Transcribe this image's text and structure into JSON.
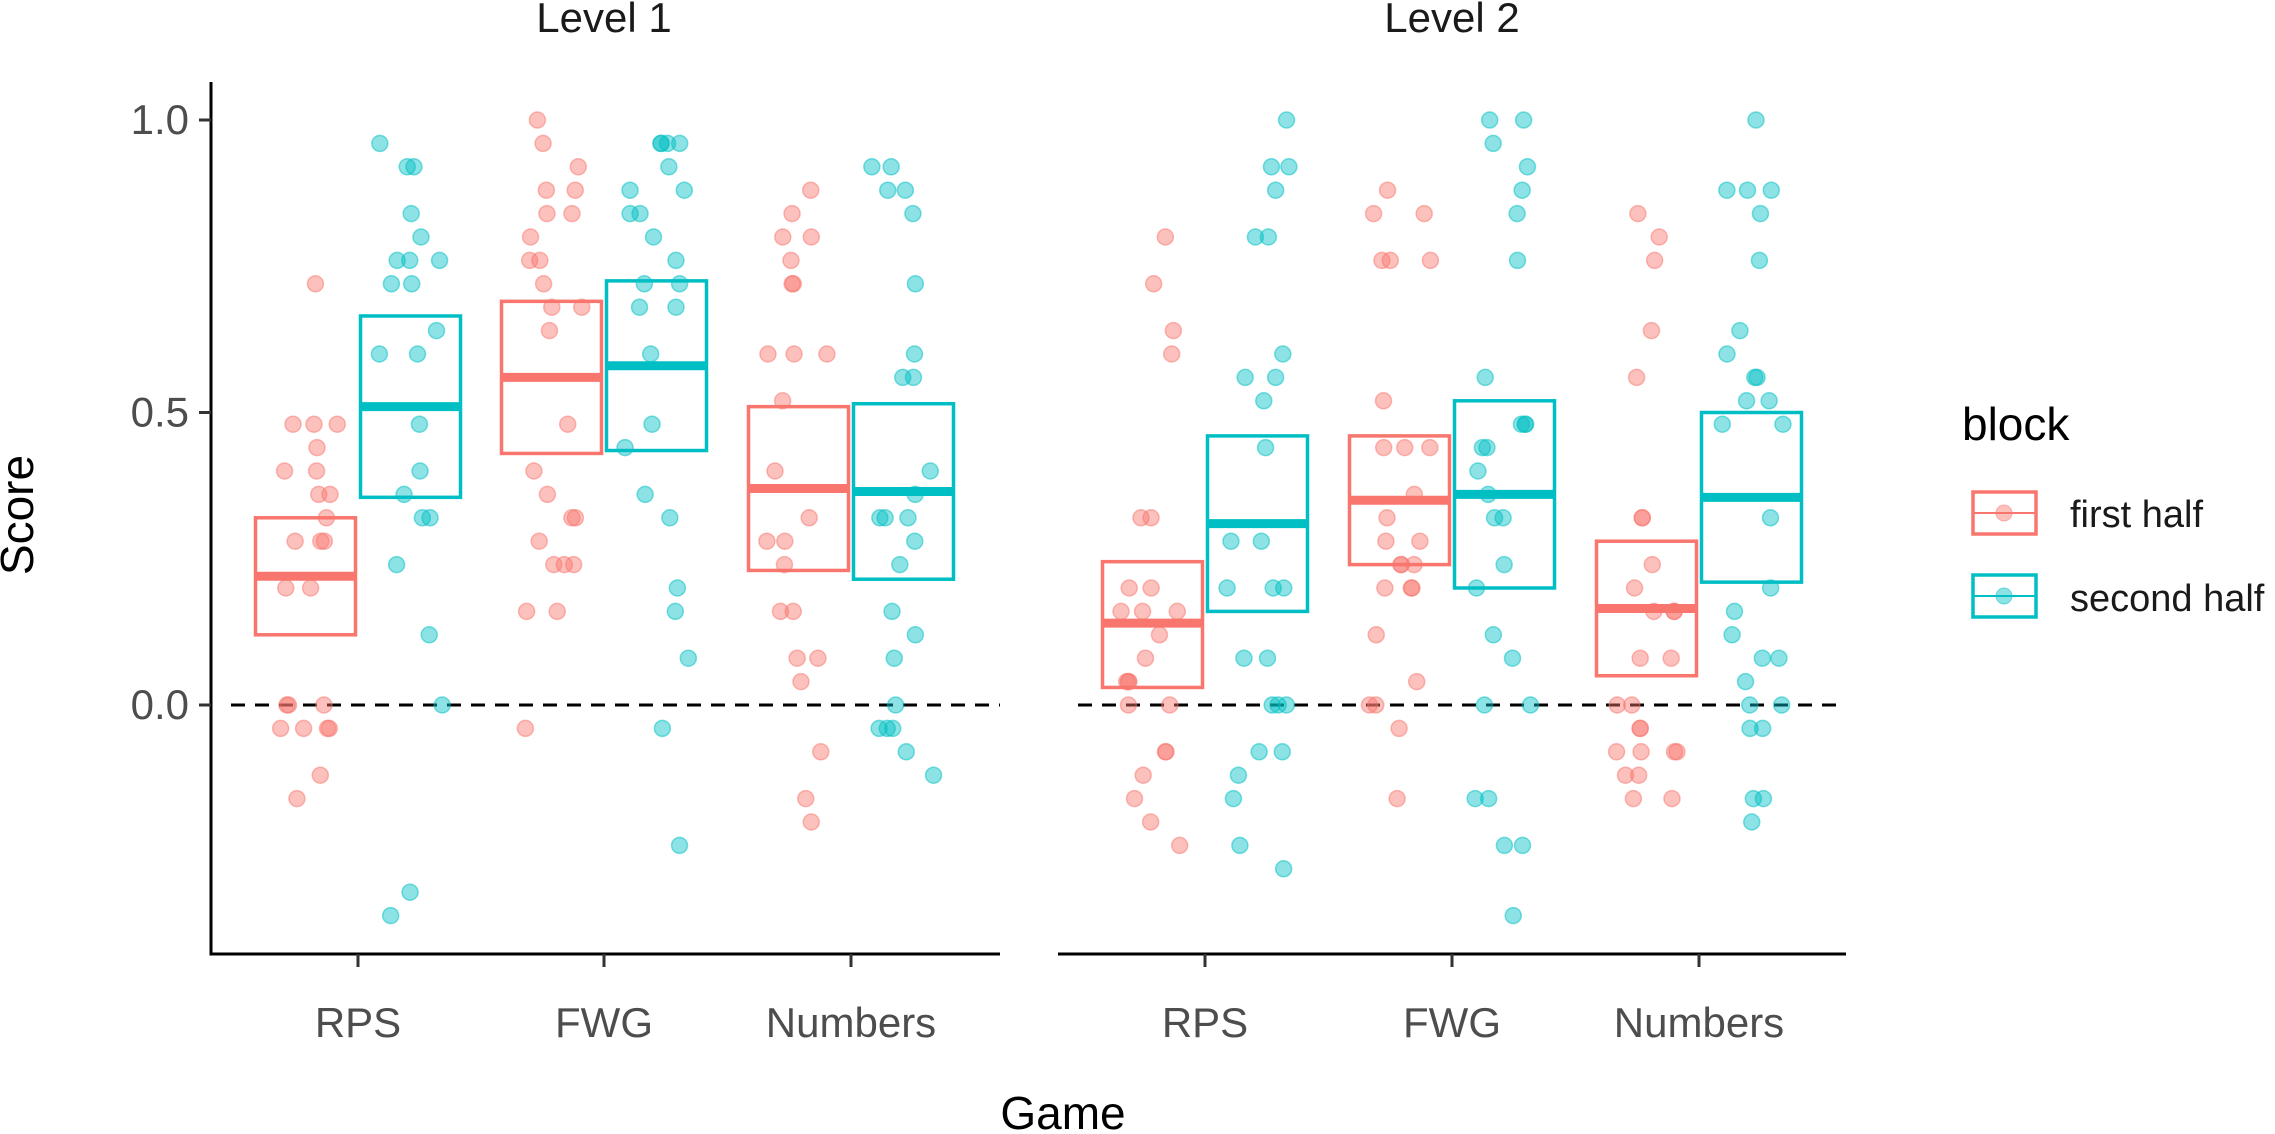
{
  "chart_data": {
    "type": "scatter",
    "subtype": "jittered points with mean boxes",
    "facets": [
      "Level 1",
      "Level 2"
    ],
    "categories": [
      "RPS",
      "FWG",
      "Numbers"
    ],
    "xlabel": "Game",
    "ylabel": "Score",
    "ylim": [
      -0.42,
      1.07
    ],
    "yticks": [
      0.0,
      0.5,
      1.0
    ],
    "ytick_labels": [
      "0.0",
      "0.5",
      "1.0"
    ],
    "reference_line": {
      "y": 0,
      "style": "dashed"
    },
    "grid": false,
    "legend": {
      "title": "block",
      "position": "right",
      "entries": [
        {
          "label": "first half",
          "color": "#F8766D"
        },
        {
          "label": "second half",
          "color": "#00BFC4"
        }
      ]
    },
    "series": [
      {
        "name": "first half",
        "color": "#F8766D",
        "groups": [
          {
            "facet": "Level 1",
            "category": "RPS",
            "mean": 0.22,
            "lower": 0.12,
            "upper": 0.32,
            "points": [
              0.72,
              0.48,
              0.48,
              0.48,
              0.44,
              0.4,
              0.4,
              0.36,
              0.36,
              0.32,
              0.28,
              0.28,
              0.28,
              0.2,
              0.2,
              0.0,
              0.0,
              0.0,
              -0.04,
              -0.04,
              -0.04,
              -0.04,
              -0.12,
              -0.16
            ]
          },
          {
            "facet": "Level 1",
            "category": "FWG",
            "mean": 0.56,
            "lower": 0.43,
            "upper": 0.69,
            "points": [
              1.0,
              0.96,
              0.92,
              0.88,
              0.88,
              0.84,
              0.84,
              0.8,
              0.76,
              0.76,
              0.72,
              0.68,
              0.68,
              0.64,
              0.48,
              0.4,
              0.36,
              0.32,
              0.32,
              0.28,
              0.24,
              0.24,
              0.24,
              0.16,
              0.16,
              -0.04
            ]
          },
          {
            "facet": "Level 1",
            "category": "Numbers",
            "mean": 0.37,
            "lower": 0.23,
            "upper": 0.51,
            "points": [
              0.88,
              0.84,
              0.8,
              0.8,
              0.76,
              0.72,
              0.72,
              0.6,
              0.6,
              0.6,
              0.52,
              0.4,
              0.32,
              0.28,
              0.28,
              0.24,
              0.16,
              0.16,
              0.08,
              0.08,
              0.04,
              -0.08,
              -0.16,
              -0.2
            ]
          },
          {
            "facet": "Level 2",
            "category": "RPS",
            "mean": 0.14,
            "lower": 0.03,
            "upper": 0.245,
            "points": [
              0.8,
              0.72,
              0.64,
              0.6,
              0.32,
              0.32,
              0.2,
              0.2,
              0.16,
              0.16,
              0.16,
              0.12,
              0.08,
              0.04,
              0.04,
              0.04,
              0.0,
              0.0,
              -0.08,
              -0.08,
              -0.12,
              -0.16,
              -0.2,
              -0.24
            ]
          },
          {
            "facet": "Level 2",
            "category": "FWG",
            "mean": 0.35,
            "lower": 0.24,
            "upper": 0.46,
            "points": [
              0.88,
              0.84,
              0.84,
              0.76,
              0.76,
              0.76,
              0.52,
              0.44,
              0.44,
              0.44,
              0.36,
              0.32,
              0.28,
              0.28,
              0.24,
              0.24,
              0.24,
              0.2,
              0.2,
              0.2,
              0.12,
              0.04,
              0.0,
              0.0,
              -0.04,
              -0.16
            ]
          },
          {
            "facet": "Level 2",
            "category": "Numbers",
            "mean": 0.165,
            "lower": 0.05,
            "upper": 0.28,
            "points": [
              0.84,
              0.8,
              0.76,
              0.64,
              0.56,
              0.32,
              0.32,
              0.24,
              0.2,
              0.16,
              0.16,
              0.16,
              0.08,
              0.08,
              0.0,
              0.0,
              -0.04,
              -0.04,
              -0.08,
              -0.08,
              -0.08,
              -0.08,
              -0.12,
              -0.12,
              -0.16,
              -0.16
            ]
          }
        ]
      },
      {
        "name": "second half",
        "color": "#00BFC4",
        "groups": [
          {
            "facet": "Level 1",
            "category": "RPS",
            "mean": 0.51,
            "lower": 0.355,
            "upper": 0.665,
            "points": [
              0.96,
              0.92,
              0.92,
              0.84,
              0.8,
              0.76,
              0.76,
              0.76,
              0.72,
              0.72,
              0.64,
              0.6,
              0.6,
              0.48,
              0.4,
              0.36,
              0.32,
              0.32,
              0.24,
              0.12,
              0.0,
              -0.32,
              -0.36
            ]
          },
          {
            "facet": "Level 1",
            "category": "FWG",
            "mean": 0.58,
            "lower": 0.435,
            "upper": 0.725,
            "points": [
              0.96,
              0.96,
              0.96,
              0.96,
              0.92,
              0.88,
              0.88,
              0.84,
              0.84,
              0.8,
              0.76,
              0.72,
              0.72,
              0.68,
              0.68,
              0.6,
              0.48,
              0.44,
              0.36,
              0.32,
              0.2,
              0.16,
              0.08,
              -0.04,
              -0.24
            ]
          },
          {
            "facet": "Level 1",
            "category": "Numbers",
            "mean": 0.365,
            "lower": 0.215,
            "upper": 0.515,
            "points": [
              0.92,
              0.92,
              0.88,
              0.88,
              0.84,
              0.72,
              0.6,
              0.56,
              0.56,
              0.4,
              0.36,
              0.32,
              0.32,
              0.32,
              0.28,
              0.24,
              0.16,
              0.12,
              0.08,
              0.0,
              -0.04,
              -0.04,
              -0.04,
              -0.08,
              -0.12
            ]
          },
          {
            "facet": "Level 2",
            "category": "RPS",
            "mean": 0.31,
            "lower": 0.16,
            "upper": 0.46,
            "points": [
              1.0,
              0.92,
              0.92,
              0.88,
              0.8,
              0.8,
              0.6,
              0.56,
              0.56,
              0.52,
              0.44,
              0.28,
              0.28,
              0.2,
              0.2,
              0.2,
              0.08,
              0.08,
              0.0,
              0.0,
              0.0,
              -0.08,
              -0.08,
              -0.12,
              -0.16,
              -0.24,
              -0.28
            ]
          },
          {
            "facet": "Level 2",
            "category": "FWG",
            "mean": 0.36,
            "lower": 0.2,
            "upper": 0.52,
            "points": [
              1.0,
              1.0,
              0.96,
              0.92,
              0.88,
              0.84,
              0.76,
              0.56,
              0.48,
              0.48,
              0.48,
              0.44,
              0.44,
              0.4,
              0.36,
              0.32,
              0.32,
              0.24,
              0.2,
              0.12,
              0.08,
              0.0,
              0.0,
              -0.16,
              -0.16,
              -0.24,
              -0.24,
              -0.36
            ]
          },
          {
            "facet": "Level 2",
            "category": "Numbers",
            "mean": 0.355,
            "lower": 0.21,
            "upper": 0.5,
            "points": [
              1.0,
              0.88,
              0.88,
              0.88,
              0.84,
              0.76,
              0.64,
              0.6,
              0.56,
              0.56,
              0.52,
              0.52,
              0.48,
              0.48,
              0.32,
              0.2,
              0.16,
              0.12,
              0.08,
              0.08,
              0.04,
              0.0,
              0.0,
              -0.04,
              -0.04,
              -0.16,
              -0.16,
              -0.2
            ]
          }
        ]
      }
    ]
  }
}
